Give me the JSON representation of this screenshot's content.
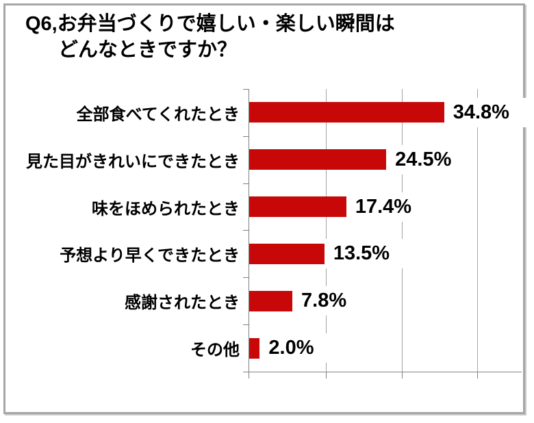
{
  "title": {
    "line1": "Q6,お弁当づくりで嬉しい・楽しい瞬間は",
    "line2": "どんなときですか？"
  },
  "chart_data": {
    "type": "bar",
    "orientation": "horizontal",
    "title": "Q6,お弁当づくりで嬉しい・楽しい瞬間はどんなときですか？",
    "categories": [
      "全部食べてくれたとき",
      "見た目がきれいにできたとき",
      "味をほめられたとき",
      "予想より早くできたとき",
      "感謝されたとき",
      "その他"
    ],
    "values": [
      34.8,
      24.5,
      17.4,
      13.5,
      7.8,
      2.0
    ],
    "value_labels": [
      "34.8%",
      "24.5%",
      "17.4%",
      "13.5%",
      "7.8%",
      "2.0%"
    ],
    "xlabel": "",
    "ylabel": "",
    "xlim": [
      0,
      48.6
    ],
    "grid": "vertical gridlines, unlabeled ticks",
    "legend": "none",
    "bar_color": "#c80808",
    "axis_color": "#808080",
    "text_color": "#000000",
    "frame_color": "#a6a6a6"
  }
}
